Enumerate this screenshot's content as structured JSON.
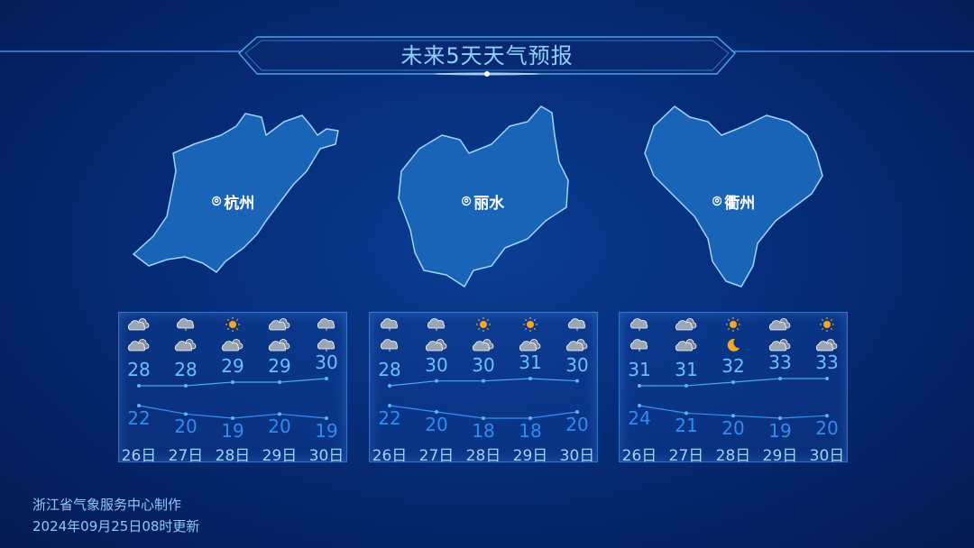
{
  "title": "未来5天天气预报",
  "colors": {
    "accent": "#6cc0ff",
    "low": "#2f8cf0",
    "sun": "#f5a623",
    "cloud": "#c9d3e0"
  },
  "cities": [
    {
      "name": "杭州",
      "dates": [
        "26日",
        "27日",
        "28日",
        "29日",
        "30日"
      ],
      "day_icons": [
        "cloudy",
        "rain",
        "sunny",
        "cloudy",
        "rain"
      ],
      "night_icons": [
        "cloudy",
        "cloudy",
        "cloudy",
        "cloudy",
        "rain"
      ],
      "highs": [
        28,
        28,
        29,
        29,
        30
      ],
      "lows": [
        22,
        20,
        19,
        20,
        19
      ]
    },
    {
      "name": "丽水",
      "dates": [
        "26日",
        "27日",
        "28日",
        "29日",
        "30日"
      ],
      "day_icons": [
        "rain",
        "rain",
        "sunny",
        "sunny",
        "rain"
      ],
      "night_icons": [
        "rain",
        "cloudy",
        "cloudy",
        "cloudy",
        "cloudy"
      ],
      "highs": [
        28,
        30,
        30,
        31,
        30
      ],
      "lows": [
        22,
        20,
        18,
        18,
        20
      ]
    },
    {
      "name": "衢州",
      "dates": [
        "26日",
        "27日",
        "28日",
        "29日",
        "30日"
      ],
      "day_icons": [
        "rain",
        "cloudy",
        "sunny",
        "cloudy",
        "sunny"
      ],
      "night_icons": [
        "rain",
        "cloudy",
        "moon",
        "cloudy",
        "cloudy"
      ],
      "highs": [
        31,
        31,
        32,
        33,
        33
      ],
      "lows": [
        24,
        21,
        20,
        19,
        20
      ]
    }
  ],
  "footer": {
    "source": "浙江省气象服务中心制作",
    "updated": "2024年09月25日08时更新"
  }
}
